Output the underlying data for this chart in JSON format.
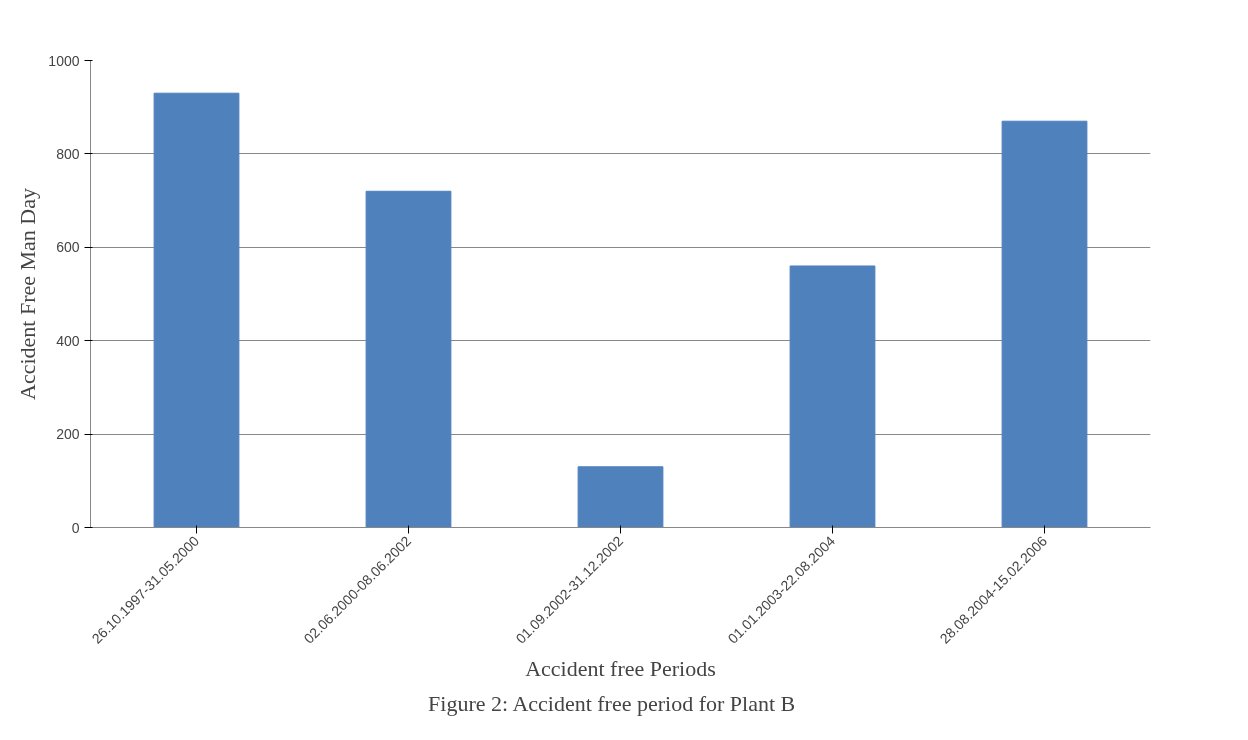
{
  "chart_data": {
    "type": "bar",
    "title": "Figure 2:   Accident free  period for Plant B",
    "xlabel": "Accident free Periods",
    "ylabel": "Accident Free Man Day",
    "categories": [
      "26.10.1997-31.05.2000",
      "02.06.2000-08.06.2002",
      "01.09.2002-31.12.2002",
      "01.01.2003-22.08.2004",
      "28.08.2004-15.02.2006"
    ],
    "values": [
      930,
      720,
      130,
      560,
      870
    ],
    "color": "#4f81bd",
    "ylim": [
      0,
      1000
    ],
    "yticks": [
      0,
      200,
      400,
      600,
      800,
      1000
    ],
    "grid": "y"
  }
}
